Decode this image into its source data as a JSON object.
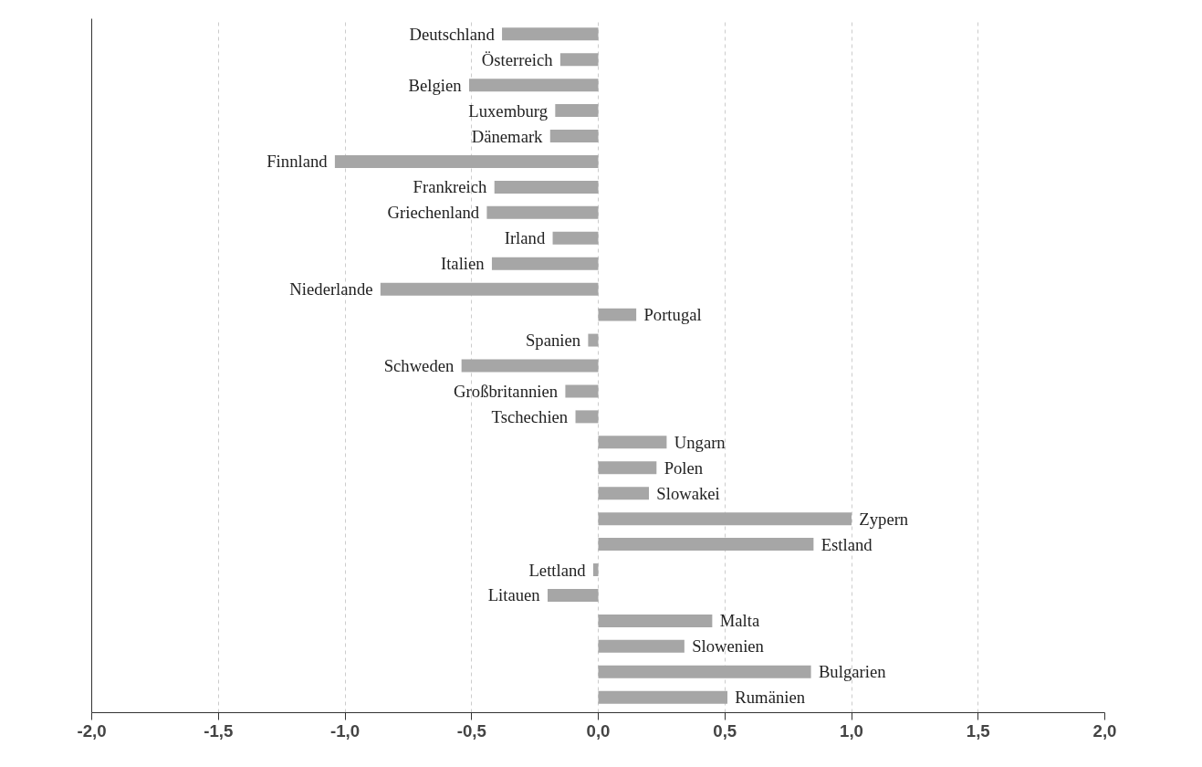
{
  "chart_data": {
    "type": "bar",
    "orientation": "horizontal",
    "color": "#a6a6a6",
    "categories": [
      "Deutschland",
      "Österreich",
      "Belgien",
      "Luxemburg",
      "Dänemark",
      "Finnland",
      "Frankreich",
      "Griechenland",
      "Irland",
      "Italien",
      "Niederlande",
      "Portugal",
      "Spanien",
      "Schweden",
      "Großbritannien",
      "Tschechien",
      "Ungarn",
      "Polen",
      "Slowakei",
      "Zypern",
      "Estland",
      "Lettland",
      "Litauen",
      "Malta",
      "Slowenien",
      "Bulgarien",
      "Rumänien"
    ],
    "values": [
      -0.38,
      -0.15,
      -0.51,
      -0.17,
      -0.19,
      -1.04,
      -0.41,
      -0.44,
      -0.18,
      -0.42,
      -0.86,
      0.15,
      -0.04,
      -0.54,
      -0.13,
      -0.09,
      0.27,
      0.23,
      0.2,
      1.0,
      0.85,
      -0.02,
      -0.2,
      0.45,
      0.34,
      0.84,
      0.51
    ],
    "xlim": [
      -2.0,
      2.0
    ],
    "xticks": [
      {
        "value": -2.0,
        "label": "-2,0"
      },
      {
        "value": -1.5,
        "label": "-1,5"
      },
      {
        "value": -1.0,
        "label": "-1,0"
      },
      {
        "value": -0.5,
        "label": "-0,5"
      },
      {
        "value": 0.0,
        "label": "0,0"
      },
      {
        "value": 0.5,
        "label": "0,5"
      },
      {
        "value": 1.0,
        "label": "1,0"
      },
      {
        "value": 1.5,
        "label": "1,5"
      },
      {
        "value": 2.0,
        "label": "2,0"
      }
    ],
    "grid": "x",
    "tick_labels": "x"
  }
}
